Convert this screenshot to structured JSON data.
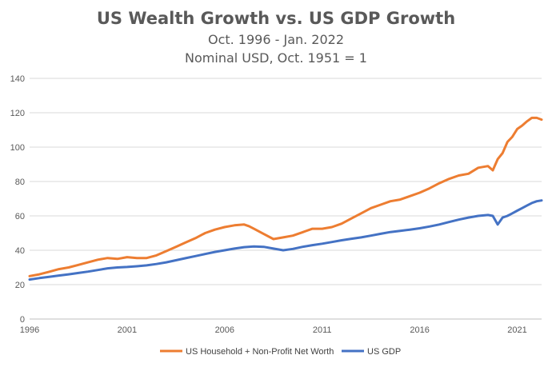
{
  "chart_data": {
    "type": "line",
    "title": "US Wealth Growth vs. US GDP Growth",
    "subtitle_lines": [
      "Oct. 1996 - Jan. 2022",
      "Nominal USD, Oct. 1951 = 1"
    ],
    "ylim": [
      0,
      140
    ],
    "xlim": [
      1996,
      2022.25
    ],
    "y_ticks": [
      0,
      20,
      40,
      60,
      80,
      100,
      120,
      140
    ],
    "x_ticks": [
      1996,
      2001,
      2006,
      2011,
      2016,
      2021
    ],
    "x_tick_labels": [
      "1996",
      "2001",
      "2006",
      "2011",
      "2016",
      "2021"
    ],
    "grid": "horizontal",
    "legend_position": "bottom",
    "series": [
      {
        "name": "US Household + Non-Profit Net Worth",
        "color": "#ED7D31",
        "x": [
          1996.0,
          1996.5,
          1997.0,
          1997.5,
          1998.0,
          1998.5,
          1999.0,
          1999.5,
          2000.0,
          2000.5,
          2001.0,
          2001.5,
          2002.0,
          2002.5,
          2003.0,
          2003.5,
          2004.0,
          2004.5,
          2005.0,
          2005.5,
          2006.0,
          2006.5,
          2007.0,
          2007.25,
          2007.5,
          2008.0,
          2008.5,
          2009.0,
          2009.5,
          2010.0,
          2010.5,
          2011.0,
          2011.5,
          2012.0,
          2012.5,
          2013.0,
          2013.5,
          2014.0,
          2014.5,
          2015.0,
          2015.5,
          2016.0,
          2016.5,
          2017.0,
          2017.5,
          2018.0,
          2018.5,
          2019.0,
          2019.5,
          2019.75,
          2020.0,
          2020.25,
          2020.5,
          2020.75,
          2021.0,
          2021.25,
          2021.5,
          2021.75,
          2022.0,
          2022.25
        ],
        "values": [
          25,
          26,
          27.5,
          29,
          30,
          31.5,
          33,
          34.5,
          35.5,
          35,
          36,
          35.5,
          35.5,
          37,
          39.5,
          42,
          44.5,
          47,
          50,
          52,
          53.5,
          54.5,
          55,
          54,
          52.5,
          49.5,
          46.5,
          47.5,
          48.5,
          50.5,
          52.5,
          52.5,
          53.5,
          55.5,
          58.5,
          61.5,
          64.5,
          66.5,
          68.5,
          69.5,
          71.5,
          73.5,
          76,
          79,
          81.5,
          83.5,
          84.5,
          88,
          89,
          86.5,
          93,
          96.5,
          103,
          106,
          110.5,
          112.5,
          115,
          117,
          117,
          116
        ]
      },
      {
        "name": "US GDP",
        "color": "#4472C4",
        "x": [
          1996.0,
          1996.5,
          1997.0,
          1997.5,
          1998.0,
          1998.5,
          1999.0,
          1999.5,
          2000.0,
          2000.5,
          2001.0,
          2001.5,
          2002.0,
          2002.5,
          2003.0,
          2003.5,
          2004.0,
          2004.5,
          2005.0,
          2005.5,
          2006.0,
          2006.5,
          2007.0,
          2007.5,
          2008.0,
          2008.5,
          2009.0,
          2009.5,
          2010.0,
          2010.5,
          2011.0,
          2011.5,
          2012.0,
          2012.5,
          2013.0,
          2013.5,
          2014.0,
          2014.5,
          2015.0,
          2015.5,
          2016.0,
          2016.5,
          2017.0,
          2017.5,
          2018.0,
          2018.5,
          2019.0,
          2019.5,
          2019.75,
          2020.0,
          2020.25,
          2020.5,
          2020.75,
          2021.0,
          2021.25,
          2021.5,
          2021.75,
          2022.0,
          2022.25
        ],
        "values": [
          23,
          23.8,
          24.5,
          25.3,
          26,
          26.8,
          27.6,
          28.5,
          29.5,
          30,
          30.3,
          30.7,
          31.2,
          32,
          33,
          34.2,
          35.4,
          36.6,
          37.8,
          39,
          40,
          41,
          41.8,
          42.2,
          42,
          41,
          40,
          40.8,
          42,
          43,
          43.8,
          44.8,
          45.8,
          46.7,
          47.5,
          48.5,
          49.6,
          50.6,
          51.3,
          52,
          52.8,
          53.8,
          55,
          56.4,
          57.8,
          59,
          60,
          60.5,
          60,
          55,
          59,
          60,
          61.5,
          63,
          64.5,
          66,
          67.5,
          68.5,
          69
        ]
      }
    ]
  }
}
